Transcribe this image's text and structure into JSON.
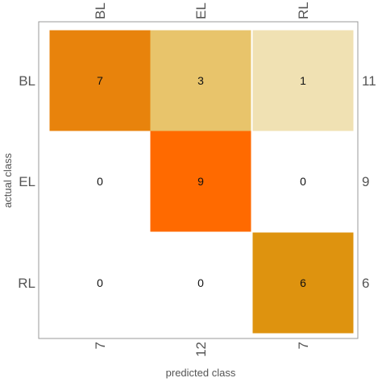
{
  "chart_data": {
    "type": "heatmap",
    "title": "",
    "xlabel": "predicted class",
    "ylabel": "actual class",
    "classes": [
      "BL",
      "EL",
      "RL"
    ],
    "matrix": [
      [
        7,
        3,
        1
      ],
      [
        0,
        9,
        0
      ],
      [
        0,
        0,
        6
      ]
    ],
    "row_totals": [
      "11",
      "9",
      "6"
    ],
    "column_totals": [
      "7",
      "12",
      "7"
    ],
    "cell_colors": [
      [
        "#E8830C",
        "#E8C46B",
        "#F0E1B3"
      ],
      [
        "#FFFFFF",
        "#FF6A00",
        "#FFFFFF"
      ],
      [
        "#FFFFFF",
        "#FFFFFF",
        "#DE930F"
      ]
    ],
    "frame_color": "#999999",
    "grid": false
  }
}
